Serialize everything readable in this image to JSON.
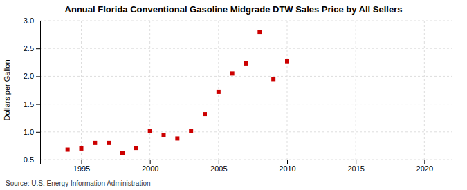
{
  "chart_data": {
    "type": "scatter",
    "title": "Annual Florida Conventional Gasoline Midgrade DTW Sales Price by All Sellers",
    "ylabel": "Dollars per Gallon",
    "annotations": [
      "Source: U.S. Energy Information Administration"
    ],
    "x": [
      1994,
      1995,
      1996,
      1997,
      1998,
      1999,
      2000,
      2001,
      2002,
      2003,
      2004,
      2005,
      2006,
      2007,
      2008,
      2009,
      2010
    ],
    "values": [
      0.68,
      0.7,
      0.8,
      0.8,
      0.62,
      0.71,
      1.02,
      0.94,
      0.88,
      1.02,
      1.32,
      1.72,
      2.05,
      2.23,
      2.8,
      1.95,
      2.27
    ],
    "color": "#cc0000",
    "marker": "square",
    "xlim": [
      1992,
      2022
    ],
    "xticks": [
      1995,
      2000,
      2005,
      2010,
      2015,
      2020
    ],
    "ylim": [
      0.5,
      3.0
    ],
    "yticks": [
      0.5,
      {
        "value": 1.0,
        "label": "1.0"
      },
      1.5,
      {
        "value": 2.0,
        "label": "2.0"
      },
      2.5,
      {
        "value": 3.0,
        "label": "3.0"
      }
    ],
    "grid": true
  }
}
